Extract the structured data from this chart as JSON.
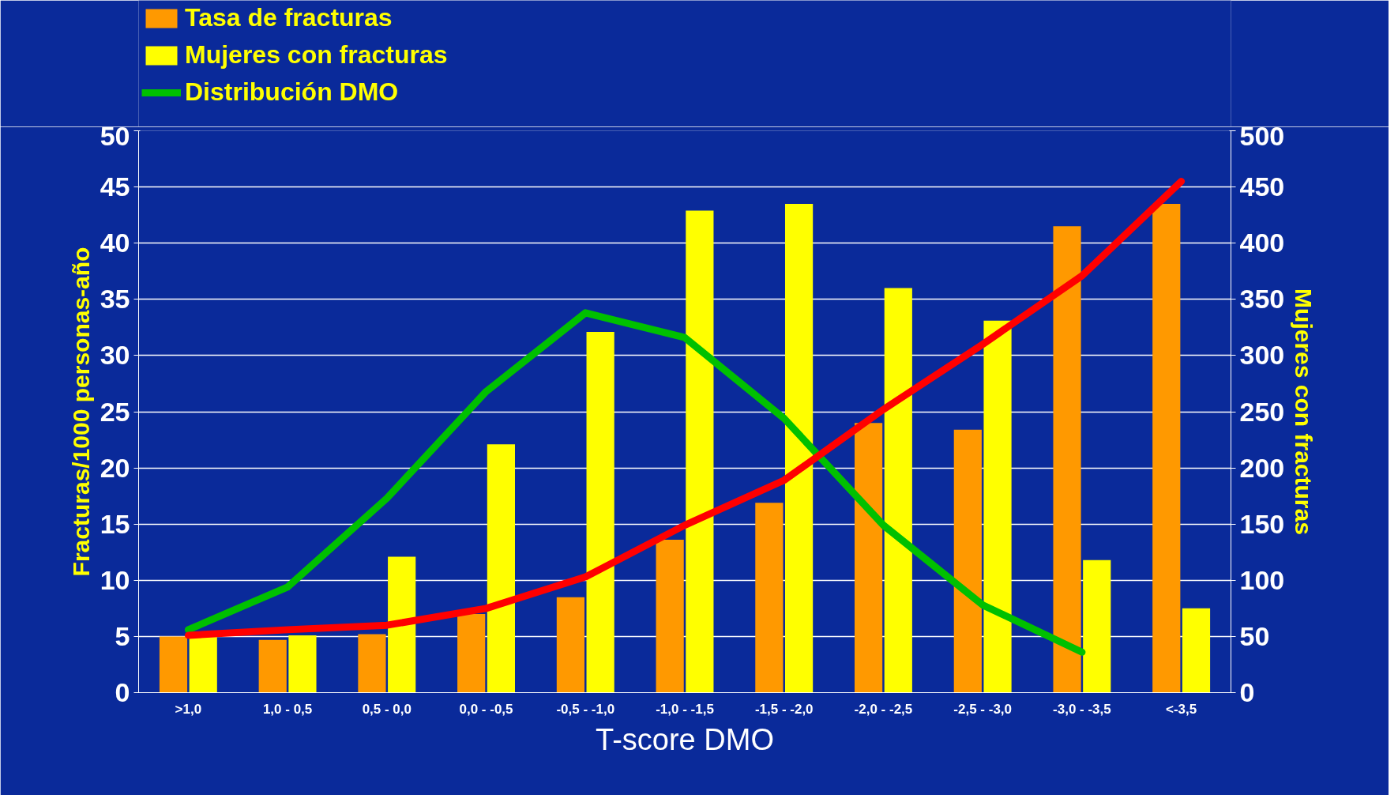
{
  "chart_data": {
    "type": "bar",
    "categories": [
      ">1,0",
      "1,0 - 0,5",
      "0,5 - 0,0",
      "0,0 - -0,5",
      "-0,5 - -1,0",
      "-1,0 - -1,5",
      "-1,5 - -2,0",
      "-2,0 - -2,5",
      "-2,5 - -3,0",
      "-3,0 - -3,5",
      "<-3,5"
    ],
    "series": [
      {
        "name": "Tasa de fracturas",
        "color": "#ff9900",
        "values": [
          5.0,
          4.7,
          5.2,
          7.0,
          8.5,
          13.6,
          16.9,
          24.0,
          23.4,
          41.5,
          43.5
        ]
      },
      {
        "name": "Mujeres con fracturas",
        "axis": "y2",
        "color": "#ffff00",
        "values": [
          50,
          51,
          121,
          221,
          321,
          429,
          435,
          360,
          331,
          118,
          75
        ]
      },
      {
        "name": "Distribución DMO",
        "type": "line",
        "color": "#00c000",
        "values": [
          5.6,
          9.4,
          17.3,
          26.8,
          33.8,
          31.6,
          24.4,
          14.9,
          7.8,
          3.6,
          null
        ]
      },
      {
        "type": "line",
        "color": "#ff0000",
        "values": [
          5.1,
          5.6,
          6.0,
          7.5,
          10.3,
          14.9,
          18.9,
          25.2,
          31.0,
          37.1,
          45.5
        ]
      }
    ],
    "xlabel": "T-score DMO",
    "ylabel": "Fracturas/1000 personas-año",
    "y2label": "Mujeres con fracturas",
    "ylim": [
      0,
      50
    ],
    "yticks": [
      0,
      5,
      10,
      15,
      20,
      25,
      30,
      35,
      40,
      45,
      50
    ],
    "y2lim": [
      0,
      500
    ],
    "y2ticks": [
      0,
      50,
      100,
      150,
      200,
      250,
      300,
      350,
      400,
      450,
      500
    ],
    "grid": "y",
    "legend": "top left"
  }
}
